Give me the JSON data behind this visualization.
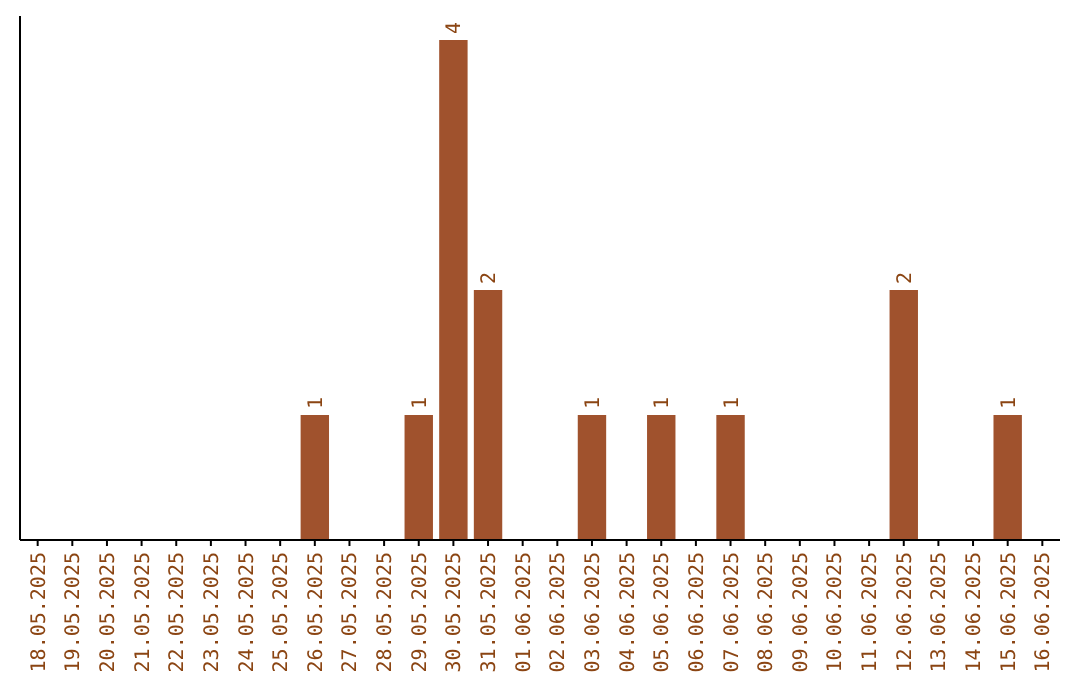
{
  "chart_data": {
    "type": "bar",
    "categories": [
      "18.05.2025",
      "19.05.2025",
      "20.05.2025",
      "21.05.2025",
      "22.05.2025",
      "23.05.2025",
      "24.05.2025",
      "25.05.2025",
      "26.05.2025",
      "27.05.2025",
      "28.05.2025",
      "29.05.2025",
      "30.05.2025",
      "31.05.2025",
      "01.06.2025",
      "02.06.2025",
      "03.06.2025",
      "04.06.2025",
      "05.06.2025",
      "06.06.2025",
      "07.06.2025",
      "08.06.2025",
      "09.06.2025",
      "10.06.2025",
      "11.06.2025",
      "12.06.2025",
      "13.06.2025",
      "14.06.2025",
      "15.06.2025",
      "16.06.2025"
    ],
    "values": [
      0,
      0,
      0,
      0,
      0,
      0,
      0,
      0,
      1,
      0,
      0,
      1,
      4,
      2,
      0,
      0,
      1,
      0,
      1,
      0,
      1,
      0,
      0,
      0,
      0,
      2,
      0,
      0,
      1,
      0
    ],
    "value_labels": [
      null,
      null,
      null,
      null,
      null,
      null,
      null,
      null,
      "1",
      null,
      null,
      "1",
      "4",
      "2",
      null,
      null,
      "1",
      null,
      "1",
      null,
      "1",
      null,
      null,
      null,
      null,
      "2",
      null,
      null,
      "1",
      null
    ],
    "color": "#a0522d"
  }
}
